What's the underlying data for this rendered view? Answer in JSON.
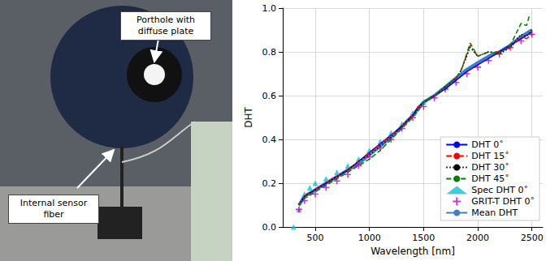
{
  "photo_labels": [
    "Porthole with diffuse plate",
    "Internal sensor fiber"
  ],
  "chart_data": {
    "type": "line",
    "x_label": "Wavelength [nm]",
    "y_label": "DHT",
    "xlim": [
      200,
      2600
    ],
    "xticks": [
      500,
      1000,
      1500,
      2000,
      2500
    ],
    "ylim": [
      0,
      1
    ],
    "yticks": [
      {
        "value": 0,
        "label": "0.0"
      },
      {
        "value": 0.2,
        "label": "0.2"
      },
      {
        "value": 0.4,
        "label": "0.4"
      },
      {
        "value": 0.6,
        "label": "0.6"
      },
      {
        "value": 0.8,
        "label": "0.8"
      },
      {
        "value": 1,
        "label": "1.0"
      }
    ],
    "grid": true,
    "legend": "lower right",
    "series": [
      {
        "name": "DHT 0˚",
        "type": "line",
        "color": "#0000ff",
        "line_style": "solid",
        "x": [
          350,
          400,
          500,
          600,
          700,
          800,
          900,
          1000,
          1100,
          1200,
          1300,
          1400,
          1450,
          1500,
          1600,
          1700,
          1800,
          1900,
          2000,
          2100,
          2200,
          2300,
          2400,
          2500
        ],
        "values": [
          0.1,
          0.14,
          0.17,
          0.2,
          0.23,
          0.26,
          0.3,
          0.34,
          0.38,
          0.42,
          0.46,
          0.51,
          0.55,
          0.57,
          0.6,
          0.63,
          0.67,
          0.71,
          0.74,
          0.77,
          0.8,
          0.83,
          0.86,
          0.89
        ]
      },
      {
        "name": "DHT 15˚",
        "type": "line",
        "color": "#ff0000",
        "line_style": "dashdot",
        "x": [
          350,
          400,
          500,
          600,
          700,
          800,
          900,
          1000,
          1100,
          1200,
          1300,
          1400,
          1450,
          1500,
          1600,
          1700,
          1800,
          1850,
          1930,
          2000,
          2100,
          2200,
          2300,
          2400,
          2450,
          2500
        ],
        "values": [
          0.1,
          0.14,
          0.17,
          0.2,
          0.23,
          0.26,
          0.3,
          0.34,
          0.38,
          0.42,
          0.46,
          0.51,
          0.55,
          0.57,
          0.6,
          0.64,
          0.68,
          0.72,
          0.83,
          0.78,
          0.8,
          0.8,
          0.82,
          0.87,
          0.86,
          0.88
        ]
      },
      {
        "name": "DHT 30˚",
        "type": "line",
        "color": "#000000",
        "line_style": "dotted",
        "x": [
          350,
          400,
          500,
          600,
          700,
          800,
          900,
          1000,
          1100,
          1200,
          1300,
          1400,
          1450,
          1500,
          1600,
          1700,
          1800,
          1850,
          1930,
          2000,
          2100,
          2200,
          2300,
          2400,
          2450,
          2500
        ],
        "values": [
          0.1,
          0.14,
          0.17,
          0.2,
          0.23,
          0.26,
          0.3,
          0.33,
          0.37,
          0.41,
          0.46,
          0.51,
          0.54,
          0.57,
          0.6,
          0.64,
          0.68,
          0.72,
          0.82,
          0.78,
          0.8,
          0.79,
          0.82,
          0.88,
          0.87,
          0.9
        ]
      },
      {
        "name": "DHT 45˚",
        "type": "line",
        "color": "#008000",
        "line_style": "dashed",
        "x": [
          350,
          400,
          500,
          600,
          700,
          800,
          900,
          1000,
          1100,
          1200,
          1300,
          1400,
          1450,
          1500,
          1600,
          1700,
          1800,
          1850,
          1930,
          2000,
          2100,
          2200,
          2300,
          2400,
          2450,
          2480
        ],
        "values": [
          0.1,
          0.13,
          0.16,
          0.19,
          0.22,
          0.25,
          0.28,
          0.31,
          0.35,
          0.4,
          0.45,
          0.5,
          0.53,
          0.57,
          0.6,
          0.64,
          0.68,
          0.72,
          0.84,
          0.78,
          0.8,
          0.79,
          0.83,
          0.93,
          0.92,
          0.97
        ]
      },
      {
        "name": "Spec DHT 0˚",
        "type": "scatter",
        "color": "#17becf",
        "marker": "triangle",
        "x": [
          300,
          350,
          400,
          450,
          500,
          600,
          700,
          800,
          900,
          1000,
          1100,
          1200,
          1300,
          1400,
          1500
        ],
        "values": [
          0.0,
          0.08,
          0.15,
          0.18,
          0.2,
          0.22,
          0.25,
          0.28,
          0.31,
          0.35,
          0.39,
          0.43,
          0.47,
          0.52,
          0.57
        ]
      },
      {
        "name": "GRIT-T DHT 0˚",
        "type": "scatter",
        "color": "#cc00cc",
        "marker": "plus",
        "x": [
          350,
          400,
          500,
          600,
          700,
          800,
          900,
          1000,
          1100,
          1200,
          1300,
          1400,
          1500,
          1600,
          1700,
          1800,
          1900,
          2000,
          2100,
          2200,
          2300,
          2400,
          2500
        ],
        "values": [
          0.08,
          0.12,
          0.15,
          0.18,
          0.21,
          0.24,
          0.28,
          0.32,
          0.36,
          0.4,
          0.45,
          0.5,
          0.55,
          0.59,
          0.63,
          0.66,
          0.7,
          0.73,
          0.76,
          0.79,
          0.82,
          0.85,
          0.88
        ]
      },
      {
        "name": "Mean DHT",
        "type": "line",
        "color": "#3b7fc4",
        "line_style": "solid",
        "x": [
          350,
          400,
          500,
          600,
          700,
          800,
          900,
          1000,
          1100,
          1200,
          1300,
          1400,
          1450,
          1500,
          1600,
          1700,
          1800,
          1900,
          2000,
          2100,
          2200,
          2300,
          2400,
          2500
        ],
        "values": [
          0.1,
          0.14,
          0.17,
          0.2,
          0.23,
          0.26,
          0.29,
          0.33,
          0.37,
          0.41,
          0.46,
          0.51,
          0.54,
          0.57,
          0.6,
          0.64,
          0.68,
          0.72,
          0.75,
          0.78,
          0.8,
          0.83,
          0.87,
          0.9
        ]
      }
    ]
  }
}
